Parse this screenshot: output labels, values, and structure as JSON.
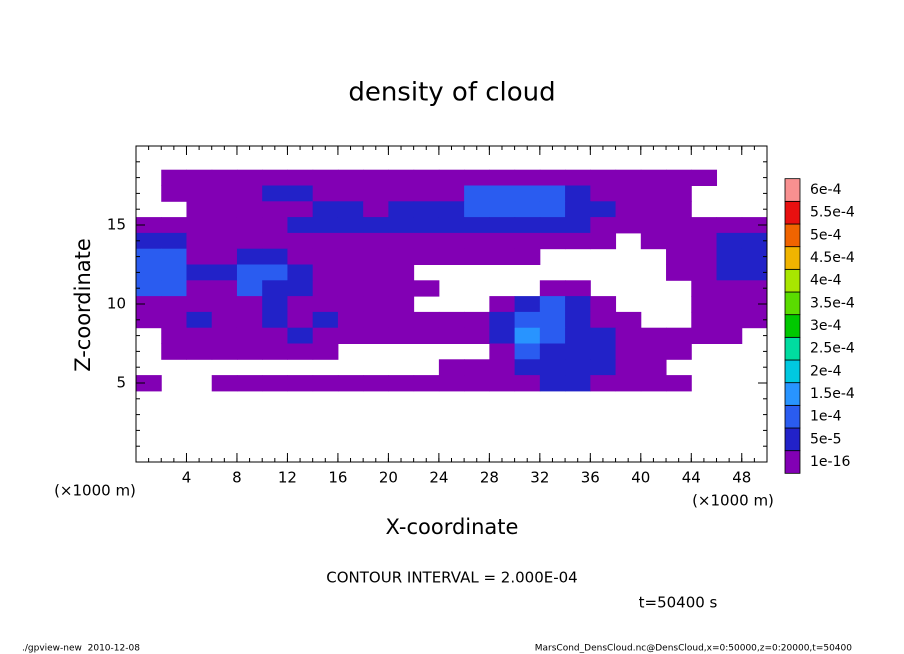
{
  "chart_data": {
    "type": "contour",
    "title": "density of cloud",
    "xlabel": "X-coordinate",
    "ylabel": "Z-coordinate",
    "x_unit_left": "(×1000 m)",
    "x_unit_right": "(×1000 m)",
    "contour_interval": "CONTOUR INTERVAL = 2.000E-04",
    "time_label": "t=50400 s",
    "footer_left": "./gpview-new  2010-12-08",
    "footer_right": "MarsCond_DensCloud.nc@DensCloud,x=0:50000,z=0:20000,t=50400",
    "xlim": [
      0,
      50
    ],
    "ylim": [
      0,
      20
    ],
    "xticks": [
      4,
      8,
      12,
      16,
      20,
      24,
      28,
      32,
      36,
      40,
      44,
      48
    ],
    "yticks": [
      5,
      10,
      15
    ],
    "minor_tick_step": 1,
    "levels": [
      {
        "value": 1e-16,
        "label": "1e-16"
      },
      {
        "value": 5e-05,
        "label": "5e-5"
      },
      {
        "value": 0.0001,
        "label": "1e-4"
      },
      {
        "value": 0.00015,
        "label": "1.5e-4"
      },
      {
        "value": 0.0002,
        "label": "2e-4"
      },
      {
        "value": 0.00025,
        "label": "2.5e-4"
      },
      {
        "value": 0.0003,
        "label": "3e-4"
      },
      {
        "value": 0.00035,
        "label": "3.5e-4"
      },
      {
        "value": 0.0004,
        "label": "4e-4"
      },
      {
        "value": 0.00045,
        "label": "4.5e-4"
      },
      {
        "value": 0.0005,
        "label": "5e-4"
      },
      {
        "value": 0.00055,
        "label": "5.5e-4"
      },
      {
        "value": 0.0006,
        "label": "6e-4"
      }
    ],
    "level_colors": [
      "#8200b4",
      "#2222c8",
      "#2a5cf0",
      "#2894ff",
      "#00c8e0",
      "#00dca0",
      "#00c800",
      "#5adc00",
      "#a8e600",
      "#f0b400",
      "#f06400",
      "#e81010",
      "#f89090"
    ],
    "x": [
      1,
      3,
      5,
      7,
      9,
      11,
      13,
      15,
      17,
      19,
      21,
      23,
      25,
      27,
      29,
      31,
      33,
      35,
      37,
      39,
      41,
      43,
      45,
      47,
      49
    ],
    "y": [
      18,
      17,
      16,
      15,
      14,
      13,
      12,
      11,
      10,
      9,
      8,
      7,
      6,
      5
    ],
    "z": [
      [
        null,
        1e-16,
        1e-16,
        1e-16,
        1e-16,
        1e-16,
        1e-16,
        1e-16,
        1e-16,
        1e-16,
        1e-16,
        1e-16,
        1e-16,
        1e-16,
        1e-16,
        1e-16,
        1e-16,
        1e-16,
        1e-16,
        1e-16,
        1e-16,
        1e-16,
        1e-16,
        null,
        null
      ],
      [
        null,
        1e-16,
        1e-16,
        1e-16,
        1e-16,
        5e-05,
        5e-05,
        1e-16,
        1e-16,
        1e-16,
        1e-16,
        1e-16,
        1e-16,
        0.0001,
        0.0001,
        0.0001,
        0.0001,
        5e-05,
        1e-16,
        1e-16,
        1e-16,
        1e-16,
        null,
        null,
        null
      ],
      [
        null,
        null,
        1e-16,
        1e-16,
        1e-16,
        1e-16,
        1e-16,
        5e-05,
        5e-05,
        1e-16,
        5e-05,
        5e-05,
        5e-05,
        0.0001,
        0.0001,
        0.0001,
        0.0001,
        5e-05,
        5e-05,
        1e-16,
        1e-16,
        1e-16,
        null,
        null,
        null
      ],
      [
        1e-16,
        1e-16,
        1e-16,
        1e-16,
        1e-16,
        1e-16,
        5e-05,
        5e-05,
        5e-05,
        5e-05,
        5e-05,
        5e-05,
        5e-05,
        5e-05,
        5e-05,
        5e-05,
        5e-05,
        5e-05,
        1e-16,
        1e-16,
        1e-16,
        1e-16,
        1e-16,
        1e-16,
        1e-16
      ],
      [
        5e-05,
        5e-05,
        1e-16,
        1e-16,
        1e-16,
        1e-16,
        1e-16,
        1e-16,
        1e-16,
        1e-16,
        1e-16,
        1e-16,
        1e-16,
        1e-16,
        1e-16,
        1e-16,
        1e-16,
        1e-16,
        1e-16,
        null,
        1e-16,
        1e-16,
        1e-16,
        5e-05,
        5e-05
      ],
      [
        0.0001,
        0.0001,
        1e-16,
        1e-16,
        5e-05,
        5e-05,
        1e-16,
        1e-16,
        1e-16,
        1e-16,
        1e-16,
        1e-16,
        1e-16,
        1e-16,
        1e-16,
        1e-16,
        null,
        null,
        null,
        null,
        null,
        1e-16,
        1e-16,
        5e-05,
        5e-05
      ],
      [
        0.0001,
        0.0001,
        5e-05,
        5e-05,
        0.0001,
        0.0001,
        5e-05,
        1e-16,
        1e-16,
        1e-16,
        1e-16,
        null,
        null,
        null,
        null,
        null,
        null,
        null,
        null,
        null,
        null,
        1e-16,
        1e-16,
        5e-05,
        5e-05
      ],
      [
        0.0001,
        0.0001,
        1e-16,
        1e-16,
        0.0001,
        5e-05,
        5e-05,
        1e-16,
        1e-16,
        1e-16,
        1e-16,
        1e-16,
        null,
        null,
        null,
        null,
        1e-16,
        1e-16,
        null,
        null,
        null,
        null,
        1e-16,
        1e-16,
        1e-16
      ],
      [
        1e-16,
        1e-16,
        1e-16,
        1e-16,
        1e-16,
        5e-05,
        1e-16,
        1e-16,
        1e-16,
        1e-16,
        1e-16,
        null,
        null,
        null,
        1e-16,
        5e-05,
        0.0001,
        5e-05,
        1e-16,
        null,
        null,
        null,
        1e-16,
        1e-16,
        1e-16
      ],
      [
        1e-16,
        1e-16,
        5e-05,
        1e-16,
        1e-16,
        5e-05,
        1e-16,
        5e-05,
        1e-16,
        1e-16,
        1e-16,
        1e-16,
        1e-16,
        1e-16,
        5e-05,
        0.0001,
        0.0001,
        5e-05,
        1e-16,
        1e-16,
        null,
        null,
        1e-16,
        1e-16,
        1e-16
      ],
      [
        null,
        1e-16,
        1e-16,
        1e-16,
        1e-16,
        1e-16,
        5e-05,
        1e-16,
        1e-16,
        1e-16,
        1e-16,
        1e-16,
        1e-16,
        1e-16,
        5e-05,
        0.00015,
        0.0001,
        5e-05,
        5e-05,
        1e-16,
        1e-16,
        1e-16,
        1e-16,
        1e-16,
        null
      ],
      [
        null,
        1e-16,
        1e-16,
        1e-16,
        1e-16,
        1e-16,
        1e-16,
        1e-16,
        null,
        null,
        null,
        null,
        null,
        null,
        1e-16,
        0.0001,
        5e-05,
        5e-05,
        5e-05,
        1e-16,
        1e-16,
        1e-16,
        null,
        null,
        null
      ],
      [
        null,
        null,
        null,
        null,
        null,
        null,
        null,
        null,
        null,
        null,
        null,
        null,
        1e-16,
        1e-16,
        1e-16,
        5e-05,
        5e-05,
        5e-05,
        5e-05,
        1e-16,
        1e-16,
        null,
        null,
        null,
        null
      ],
      [
        1e-16,
        null,
        null,
        1e-16,
        1e-16,
        1e-16,
        1e-16,
        1e-16,
        1e-16,
        1e-16,
        1e-16,
        1e-16,
        1e-16,
        1e-16,
        1e-16,
        1e-16,
        5e-05,
        5e-05,
        1e-16,
        1e-16,
        1e-16,
        1e-16,
        null,
        null,
        null
      ]
    ]
  }
}
